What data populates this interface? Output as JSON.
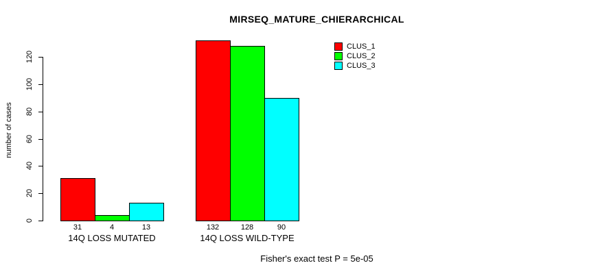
{
  "chart_data": {
    "type": "bar",
    "title": "MIRSEQ_MATURE_CHIERARCHICAL",
    "xlabel": "",
    "ylabel": "number of cases",
    "ylim": [
      0,
      132
    ],
    "yticks": [
      0,
      20,
      40,
      60,
      80,
      100,
      120
    ],
    "grid": false,
    "legend_position": "top-right-inside",
    "categories": [
      "14Q LOSS MUTATED",
      "14Q LOSS WILD-TYPE"
    ],
    "series": [
      {
        "name": "CLUS_1",
        "color": "#ff0000",
        "values": [
          31,
          132
        ]
      },
      {
        "name": "CLUS_2",
        "color": "#00ff00",
        "values": [
          4,
          128
        ]
      },
      {
        "name": "CLUS_3",
        "color": "#00ffff",
        "values": [
          13,
          90
        ]
      }
    ],
    "bar_value_labels": [
      [
        31,
        4,
        13
      ],
      [
        132,
        128,
        90
      ]
    ],
    "annotation": "Fisher's exact test P = 5e-05"
  }
}
